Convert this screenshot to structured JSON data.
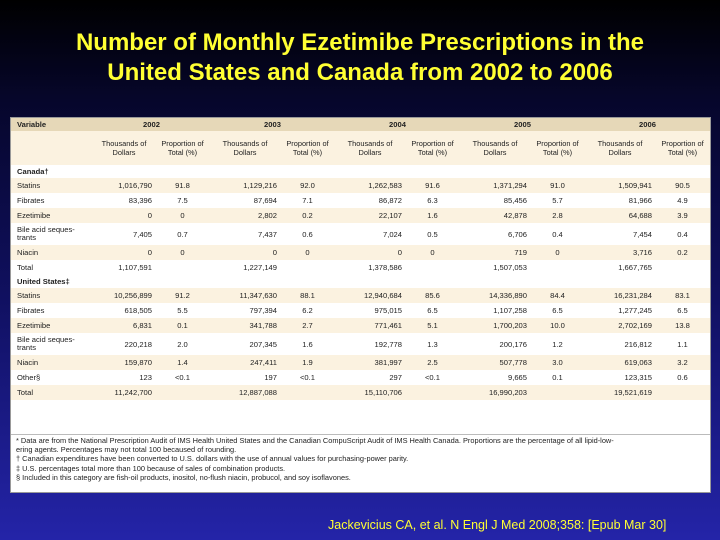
{
  "title": {
    "line1": "Number of Monthly Ezetimibe Prescriptions in the",
    "line2": "United States and Canada from 2002 to 2006"
  },
  "table": {
    "variable_header": "Variable",
    "years": [
      "2002",
      "2003",
      "2004",
      "2005",
      "2006"
    ],
    "sub_headers": {
      "dollars": "Thousands of Dollars",
      "proportion": "Proportion of Total (%)"
    },
    "sections": [
      {
        "label": "Canada†",
        "rows": [
          {
            "name": "Statins",
            "cells": [
              "1,016,790",
              "91.8",
              "1,129,216",
              "92.0",
              "1,262,583",
              "91.6",
              "1,371,294",
              "91.0",
              "1,509,941",
              "90.5"
            ]
          },
          {
            "name": "Fibrates",
            "cells": [
              "83,396",
              "7.5",
              "87,694",
              "7.1",
              "86,872",
              "6.3",
              "85,456",
              "5.7",
              "81,966",
              "4.9"
            ]
          },
          {
            "name": "Ezetimibe",
            "cells": [
              "0",
              "0",
              "2,802",
              "0.2",
              "22,107",
              "1.6",
              "42,878",
              "2.8",
              "64,688",
              "3.9"
            ]
          },
          {
            "name": "Bile acid seques-trants",
            "cells": [
              "7,405",
              "0.7",
              "7,437",
              "0.6",
              "7,024",
              "0.5",
              "6,706",
              "0.4",
              "7,454",
              "0.4"
            ]
          },
          {
            "name": "Niacin",
            "cells": [
              "0",
              "0",
              "0",
              "0",
              "0",
              "0",
              "719",
              "0",
              "3,716",
              "0.2"
            ]
          },
          {
            "name": "Total",
            "cells": [
              "1,107,591",
              "",
              "1,227,149",
              "",
              "1,378,586",
              "",
              "1,507,053",
              "",
              "1,667,765",
              ""
            ]
          }
        ]
      },
      {
        "label": "United States‡",
        "rows": [
          {
            "name": "Statins",
            "cells": [
              "10,256,899",
              "91.2",
              "11,347,630",
              "88.1",
              "12,940,684",
              "85.6",
              "14,336,890",
              "84.4",
              "16,231,284",
              "83.1"
            ]
          },
          {
            "name": "Fibrates",
            "cells": [
              "618,505",
              "5.5",
              "797,394",
              "6.2",
              "975,015",
              "6.5",
              "1,107,258",
              "6.5",
              "1,277,245",
              "6.5"
            ]
          },
          {
            "name": "Ezetimibe",
            "cells": [
              "6,831",
              "0.1",
              "341,788",
              "2.7",
              "771,461",
              "5.1",
              "1,700,203",
              "10.0",
              "2,702,169",
              "13.8"
            ]
          },
          {
            "name": "Bile acid seques-trants",
            "cells": [
              "220,218",
              "2.0",
              "207,345",
              "1.6",
              "192,778",
              "1.3",
              "200,176",
              "1.2",
              "216,812",
              "1.1"
            ]
          },
          {
            "name": "Niacin",
            "cells": [
              "159,870",
              "1.4",
              "247,411",
              "1.9",
              "381,997",
              "2.5",
              "507,778",
              "3.0",
              "619,063",
              "3.2"
            ]
          },
          {
            "name": "Other§",
            "cells": [
              "123",
              "<0.1",
              "197",
              "<0.1",
              "297",
              "<0.1",
              "9,665",
              "0.1",
              "123,315",
              "0.6"
            ]
          },
          {
            "name": "Total",
            "cells": [
              "11,242,700",
              "",
              "12,887,088",
              "",
              "15,110,706",
              "",
              "16,990,203",
              "",
              "19,521,619",
              ""
            ]
          }
        ]
      }
    ],
    "footnotes": [
      "* Data are from the National Prescription Audit of IMS Health United States and the Canadian CompuScript Audit of IMS Health Canada. Proportions are the percentage of all lipid-low-",
      "   ering agents. Percentages may not total 100 becaused of rounding.",
      "† Canadian expenditures have been converted to U.S. dollars with the use of annual values for purchasing-power parity.",
      "‡ U.S. percentages total more than 100 because of sales of combination products.",
      "§ Included in this category are fish-oil products, inositol, no-flush niacin, probucol, and soy isoflavones."
    ]
  },
  "citation": "Jackevicius CA, et al. N Engl J Med 2008;358: [Epub Mar 30]"
}
